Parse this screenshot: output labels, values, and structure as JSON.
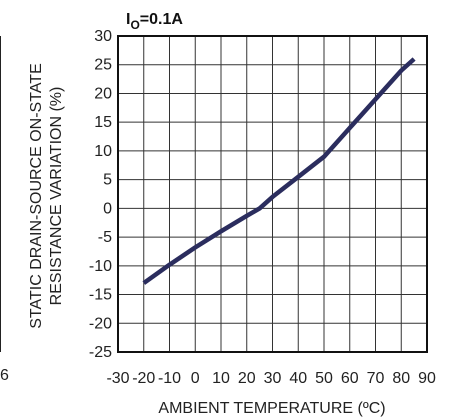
{
  "chart_data": {
    "type": "line",
    "title_main": "I",
    "title_sub": "O",
    "title_rest": "=0.1A",
    "xlabel": "AMBIENT TEMPERATURE (ºC)",
    "ylabel_line1": "STATIC DRAIN-SOURCE ON-STATE",
    "ylabel_line2": "RESISTANCE VARIATION (%)",
    "xlim": [
      -30,
      90
    ],
    "ylim": [
      -25,
      30
    ],
    "x_ticks": [
      -30,
      -20,
      -10,
      0,
      10,
      20,
      30,
      40,
      50,
      60,
      70,
      80,
      90
    ],
    "y_ticks": [
      30,
      25,
      20,
      15,
      10,
      5,
      0,
      -5,
      -10,
      -15,
      -20,
      -25
    ],
    "grid": true,
    "left_edge_label": "6",
    "series": [
      {
        "color": "#2b2d5e",
        "x": [
          -20,
          -10,
          0,
          10,
          20,
          25,
          30,
          40,
          50,
          60,
          70,
          80,
          85
        ],
        "y": [
          -13,
          -9.8,
          -6.8,
          -4,
          -1.3,
          0,
          2,
          5.5,
          9,
          14,
          19,
          24,
          26
        ]
      }
    ]
  }
}
